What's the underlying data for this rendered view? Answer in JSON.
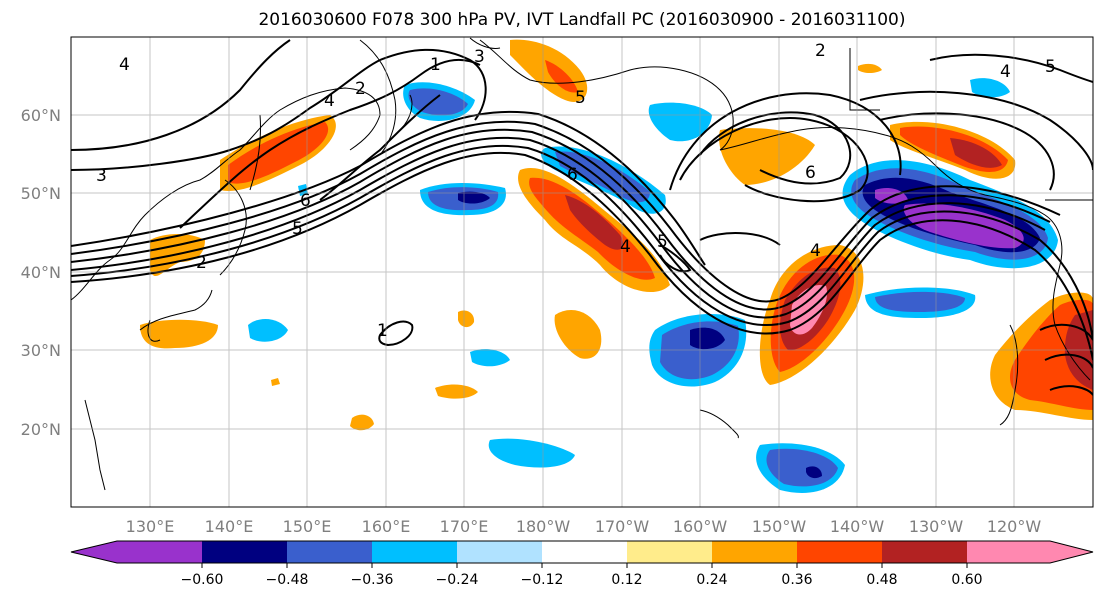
{
  "title": "2016030600 F078 300 hPa PV, IVT Landfall PC (2016030900 - 2016031100)",
  "map": {
    "lon_labels": [
      "130°E",
      "140°E",
      "150°E",
      "160°E",
      "170°E",
      "180°W",
      "170°W",
      "160°W",
      "150°W",
      "140°W",
      "130°W",
      "120°W"
    ],
    "lat_labels": [
      "60°N",
      "50°N",
      "40°N",
      "30°N",
      "20°N"
    ],
    "contour_labels": [
      "4",
      "3",
      "2",
      "1",
      "6",
      "5",
      "4",
      "3",
      "2",
      "6",
      "5",
      "4",
      "2",
      "1",
      "6",
      "5",
      "4",
      "5",
      "4"
    ]
  },
  "colorbar": {
    "colors": [
      "#9932cc",
      "#000080",
      "#3a5fcd",
      "#00bfff",
      "#b0e2ff",
      "#ffffff",
      "#ffec8b",
      "#ffa500",
      "#ff4500",
      "#b22222",
      "#ff88b0"
    ],
    "tick_labels": [
      "−0.60",
      "−0.48",
      "−0.36",
      "−0.24",
      "−0.12",
      "0.12",
      "0.24",
      "0.36",
      "0.48",
      "0.60"
    ]
  }
}
